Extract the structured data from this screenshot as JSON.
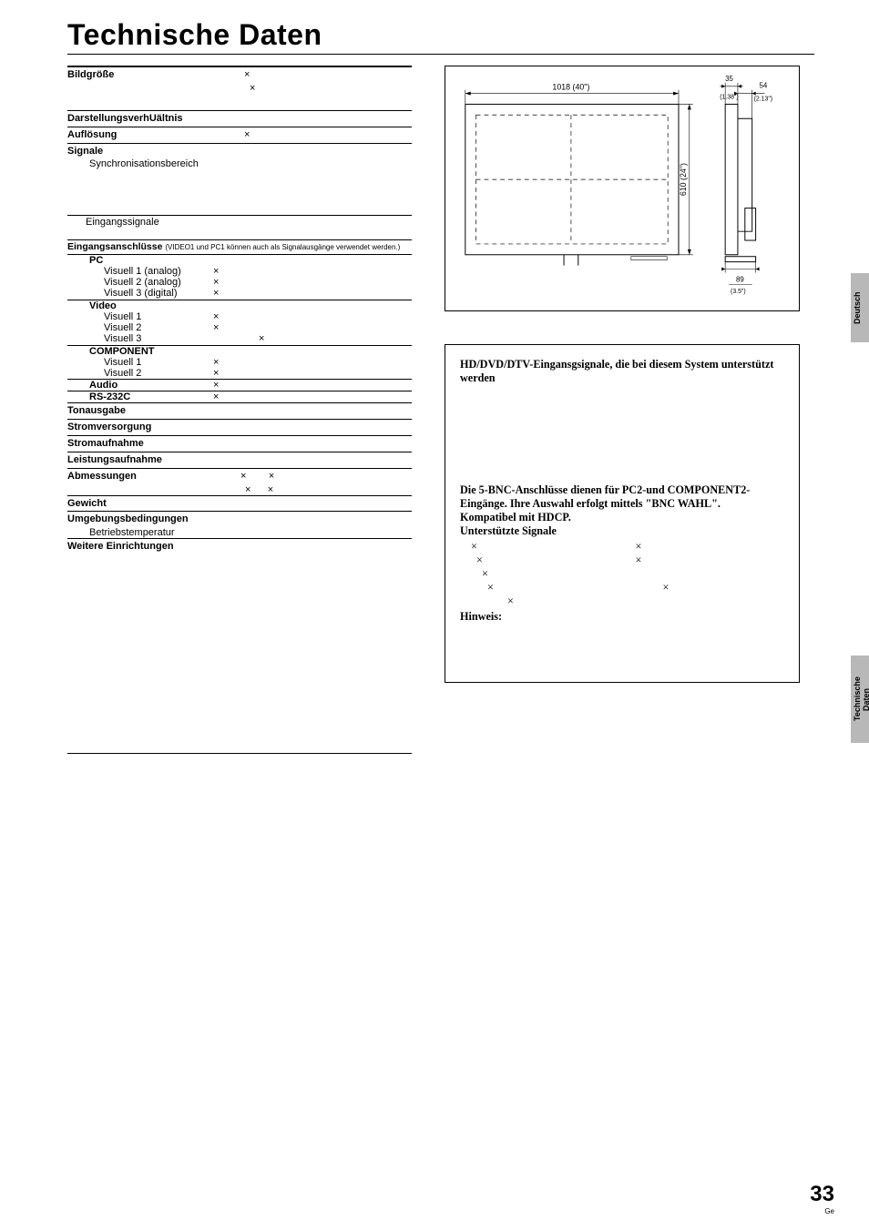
{
  "title": "Technische Daten",
  "left_specs": {
    "bildgroesse": {
      "label": "Bildgröße",
      "v1": "×",
      "v2": "×"
    },
    "darst": {
      "label": "DarstellungsverhUältnis"
    },
    "aufloesung": {
      "label": "Auflösung",
      "v": "×"
    },
    "signale": {
      "label": "Signale",
      "syncLabel": "Synchronisationsbereich"
    },
    "eingangssignale": "Eingangssignale",
    "eingangsanschluesse": {
      "label": "Eingangsanschlüsse",
      "note": "(VIDEO1 und PC1 können auch als Signalausgänge verwendet werden.)"
    },
    "pc": {
      "head": "PC",
      "rows": [
        {
          "l": "Visuell 1 (analog)",
          "v": "×"
        },
        {
          "l": "Visuell 2 (analog)",
          "v": "×"
        },
        {
          "l": "Visuell 3 (digital)",
          "v": "×"
        }
      ]
    },
    "video": {
      "head": "Video",
      "rows": [
        {
          "l": "Visuell 1",
          "v": "×"
        },
        {
          "l": "Visuell 2",
          "v": "×"
        },
        {
          "l": "Visuell 3",
          "v": "×",
          "vpad": 1
        }
      ]
    },
    "component": {
      "head": "COMPONENT",
      "rows": [
        {
          "l": "Visuell 1",
          "v": "×"
        },
        {
          "l": "Visuell 2",
          "v": "×"
        }
      ]
    },
    "audio": {
      "label": "Audio",
      "v": "×"
    },
    "rs232c": {
      "label": "RS-232C",
      "v": "×"
    },
    "tonausgabe": {
      "label": "Tonausgabe"
    },
    "strom": {
      "label": "Stromversorgung"
    },
    "stromaufnahme": {
      "label": "Stromaufnahme"
    },
    "leistung": {
      "label": "Leistungsaufnahme"
    },
    "abmessungen": {
      "label": "Abmessungen",
      "v1": "×        ×",
      "v2": "×      ×"
    },
    "gewicht": {
      "label": "Gewicht"
    },
    "umgebung": {
      "label": "Umgebungsbedingungen",
      "sub": "Betriebstemperatur"
    },
    "weitere": {
      "label": "Weitere Einrichtungen"
    }
  },
  "diagram": {
    "w_label": "1018 (40\")",
    "h_label": "610 (24\")",
    "top_small": "35\n(1.38\")",
    "right_label": "54\n(2.13\")",
    "bottom_small": "89\n(3.5\")"
  },
  "infobox": {
    "title": "HD/DVD/DTV-Eingansgsignale, die bei diesem System unterstützt werden",
    "mid1": "Die 5-BNC-Anschlüsse dienen für PC2-und COMPONENT2-Eingänge. Ihre Auswahl erfolgt mittels \"BNC WAHL\".",
    "mid2": "Kompatibel mit HDCP.",
    "sup": "Unterstützte Signale",
    "colA": [
      "×",
      "×",
      "×",
      "×",
      "×"
    ],
    "colB": [
      "×",
      "×",
      "",
      "×",
      ""
    ],
    "colB_offset": [
      0,
      0,
      0,
      1,
      0
    ],
    "hinweis": "Hinweis:"
  },
  "tabs": {
    "deutsch": "Deutsch",
    "tech": "Technische Daten"
  },
  "page": {
    "num": "33",
    "lang": "Ge"
  }
}
